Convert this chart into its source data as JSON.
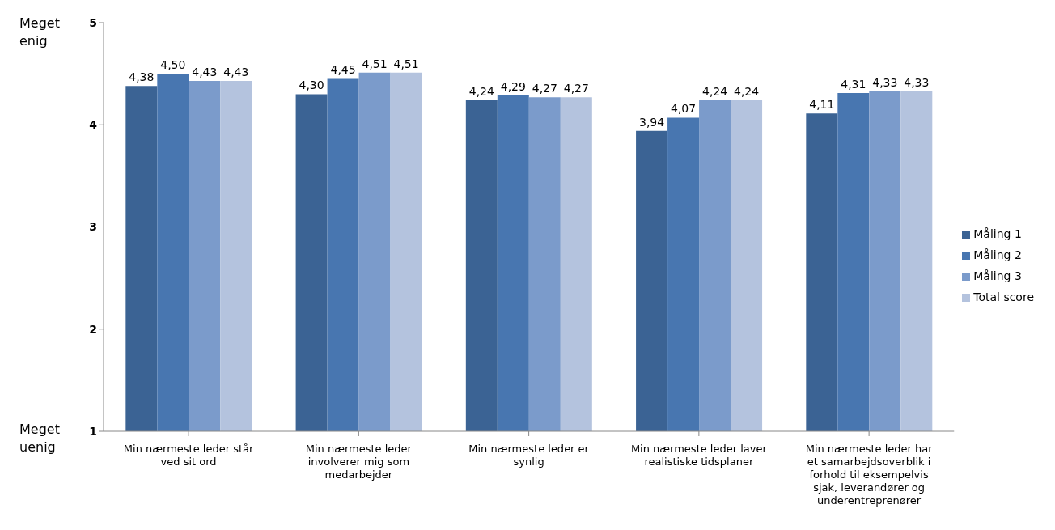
{
  "chart_data": {
    "type": "bar",
    "categories": [
      "Min nærmeste leder står ved sit ord",
      "Min nærmeste leder involverer mig som medarbejder",
      "Min nærmeste leder er synlig",
      "Min nærmeste leder laver realistiske tidsplaner",
      "Min nærmeste leder har et samarbejdsoverblik i forhold til eksempelvis sjak, leverandører og underentreprenører"
    ],
    "series": [
      {
        "name": "Måling 1",
        "color": "#3b6394",
        "values": [
          4.38,
          4.3,
          4.24,
          3.94,
          4.11
        ],
        "value_labels": [
          "4,38",
          "4,30",
          "4,24",
          "3,94",
          "4,11"
        ]
      },
      {
        "name": "Måling 2",
        "color": "#4876b0",
        "values": [
          4.5,
          4.45,
          4.29,
          4.07,
          4.31
        ],
        "value_labels": [
          "4,50",
          "4,45",
          "4,29",
          "4,07",
          "4,31"
        ]
      },
      {
        "name": "Måling 3",
        "color": "#7b9bcb",
        "values": [
          4.43,
          4.51,
          4.27,
          4.24,
          4.33
        ],
        "value_labels": [
          "4,43",
          "4,51",
          "4,27",
          "4,24",
          "4,33"
        ]
      },
      {
        "name": "Total score",
        "color": "#b4c3de",
        "values": [
          4.43,
          4.51,
          4.27,
          4.24,
          4.33
        ],
        "value_labels": [
          "4,43",
          "4,51",
          "4,27",
          "4,24",
          "4,33"
        ]
      }
    ],
    "ylim": [
      1,
      5
    ],
    "yticks": [
      1,
      2,
      3,
      4,
      5
    ],
    "grid": false,
    "legend": "right",
    "annotations": [
      "Meget enig",
      "Meget uenig"
    ]
  }
}
